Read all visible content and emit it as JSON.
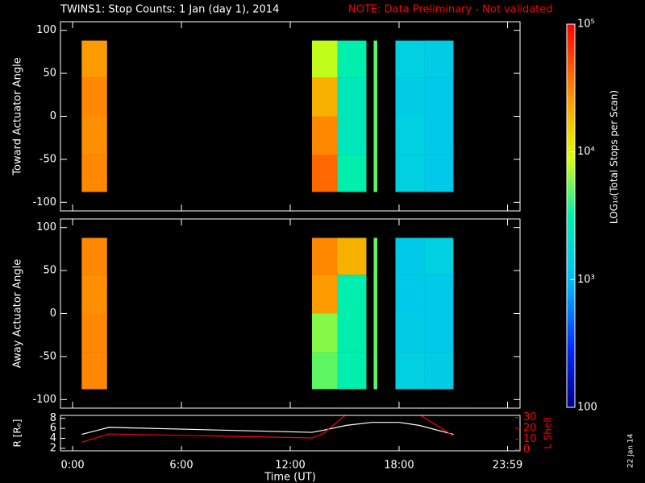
{
  "chart_data": [
    {
      "type": "heatmap",
      "title": "TWINS1: Stop Counts:  1 Jan (day   1), 2014",
      "note": "NOTE: Data Preliminary - Not validated",
      "ylabel": "Toward Actuator Angle",
      "xlim": [
        -0.67,
        24.67
      ],
      "ylim": [
        -110,
        110
      ],
      "yticks": [
        -100,
        -50,
        0,
        50,
        100
      ],
      "xbins": [
        0.5,
        1.9,
        13.2,
        14.6,
        16.2,
        16.6,
        16.8,
        17.8,
        19.4,
        21.0
      ],
      "ybins": [
        -88,
        -45,
        0,
        45,
        88
      ],
      "z": [
        [
          30000,
          null,
          40000,
          3000,
          null,
          5000,
          null,
          1500,
          1300
        ],
        [
          28000,
          null,
          30000,
          2500,
          null,
          5000,
          null,
          1500,
          1300
        ],
        [
          30000,
          null,
          20000,
          2500,
          null,
          5000,
          null,
          1400,
          1300
        ],
        [
          25000,
          null,
          8000,
          3000,
          null,
          5000,
          null,
          1500,
          1400
        ]
      ],
      "zscale": "log",
      "zlim": [
        100,
        100000
      ],
      "zticks": [
        100,
        {
          "value": 1000,
          "label": "10³"
        },
        {
          "value": 10000,
          "label": "10⁴"
        },
        {
          "value": 100000,
          "label": "10⁵"
        }
      ],
      "zlabel": "LOG₁₀(Total Stops per Scan)"
    },
    {
      "type": "heatmap",
      "ylabel": "Away Actuator Angle",
      "xlim": [
        -0.67,
        24.67
      ],
      "ylim": [
        -110,
        110
      ],
      "yticks": [
        -100,
        -50,
        0,
        50,
        100
      ],
      "xbins": [
        0.5,
        1.9,
        13.2,
        14.6,
        16.2,
        16.6,
        16.8,
        17.8,
        19.4,
        21.0
      ],
      "ybins": [
        -88,
        -45,
        0,
        45,
        88
      ],
      "z": [
        [
          30000,
          null,
          5000,
          3000,
          null,
          5000,
          null,
          1500,
          1400
        ],
        [
          30000,
          null,
          6000,
          3000,
          null,
          5000,
          null,
          1400,
          1300
        ],
        [
          28000,
          null,
          25000,
          3000,
          null,
          5000,
          null,
          1300,
          1300
        ],
        [
          30000,
          null,
          30000,
          20000,
          null,
          5000,
          null,
          1300,
          1500
        ]
      ]
    },
    {
      "type": "line",
      "xlabel": "Time (UT)",
      "ylabel": "R [Rₑ]",
      "y2label": "L Shell",
      "annotation": "22 Jan 14",
      "xlim": [
        -0.67,
        24.67
      ],
      "xticks": [
        {
          "value": 0,
          "label": "0:00"
        },
        {
          "value": 6,
          "label": "6:00"
        },
        {
          "value": 12,
          "label": "12:00"
        },
        {
          "value": 18,
          "label": "18:00"
        },
        {
          "value": 23.983,
          "label": "23:59"
        }
      ],
      "ylim": [
        1.5,
        8.6
      ],
      "yticks": [
        2,
        4,
        6,
        8
      ],
      "y2lim": [
        -1,
        32
      ],
      "y2ticks": [
        0,
        10,
        20,
        30
      ],
      "x": [
        0.5,
        2,
        13.2,
        13.8,
        15.1,
        16.5,
        18,
        19.1,
        21
      ],
      "series": [
        {
          "color": "#ffffff",
          "values": [
            4.8,
            6.2,
            5.2,
            5.6,
            6.6,
            7.2,
            7.2,
            6.6,
            4.8
          ]
        },
        {
          "color": "#ff0000",
          "axis": "y2",
          "values": [
            7,
            14.7,
            11,
            15,
            33,
            null,
            null,
            33,
            13
          ]
        }
      ]
    }
  ]
}
